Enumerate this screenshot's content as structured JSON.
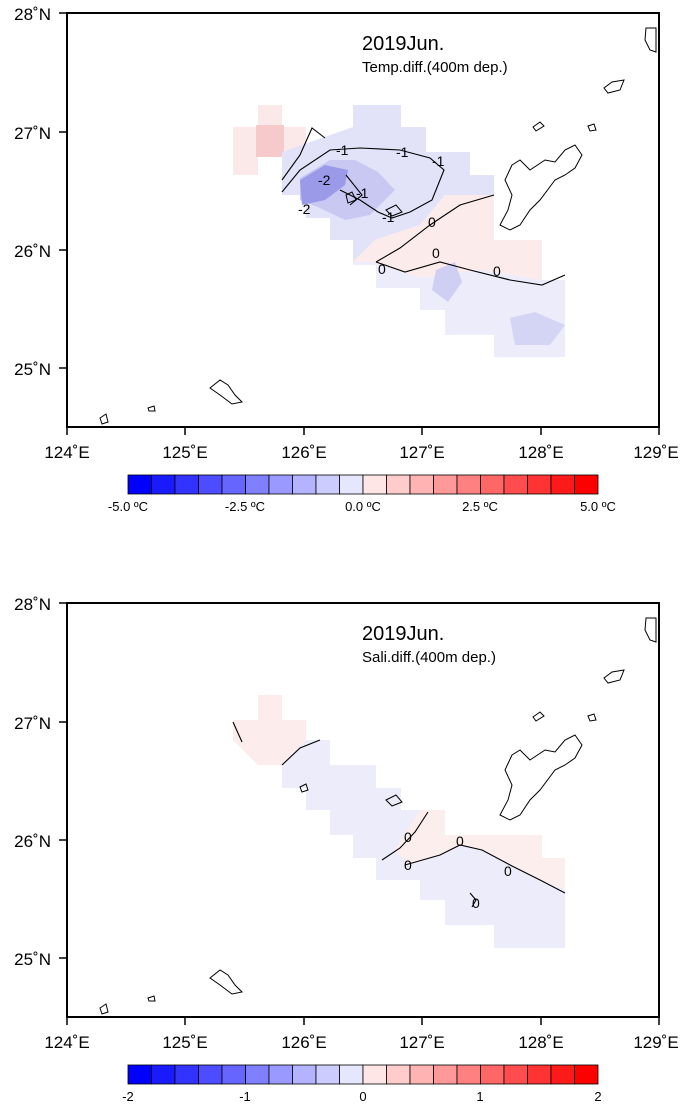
{
  "panels": [
    {
      "title": "2019Jun.",
      "subtitle": "Temp.diff.(400m dep.)",
      "x_ticks": [
        "124˚E",
        "125˚E",
        "126˚E",
        "127˚E",
        "128˚E",
        "129˚E"
      ],
      "y_ticks": [
        "28˚N",
        "27˚N",
        "26˚N",
        "25˚N"
      ],
      "colorbar_labels": [
        "-5.0 ºC",
        "-2.5 ºC",
        "0.0 ºC",
        "2.5 ºC",
        "5.0 ºC"
      ],
      "contour_labels": [
        "-1",
        "-1",
        "-1",
        "-2",
        "-2",
        "-1",
        "-1",
        "0",
        "0",
        "0",
        "0"
      ]
    },
    {
      "title": "2019Jun.",
      "subtitle": "Sali.diff.(400m dep.)",
      "x_ticks": [
        "124˚E",
        "125˚E",
        "126˚E",
        "127˚E",
        "128˚E",
        "129˚E"
      ],
      "y_ticks": [
        "28˚N",
        "27˚N",
        "26˚N",
        "25˚N"
      ],
      "colorbar_labels": [
        "-2",
        "-1",
        "0",
        "1",
        "2"
      ],
      "contour_labels": [
        "0",
        "0",
        "0",
        "0",
        "0"
      ]
    }
  ],
  "colors": {
    "blue_max": "#0000ff",
    "red_max": "#ff0000",
    "land_outline": "#000000"
  }
}
